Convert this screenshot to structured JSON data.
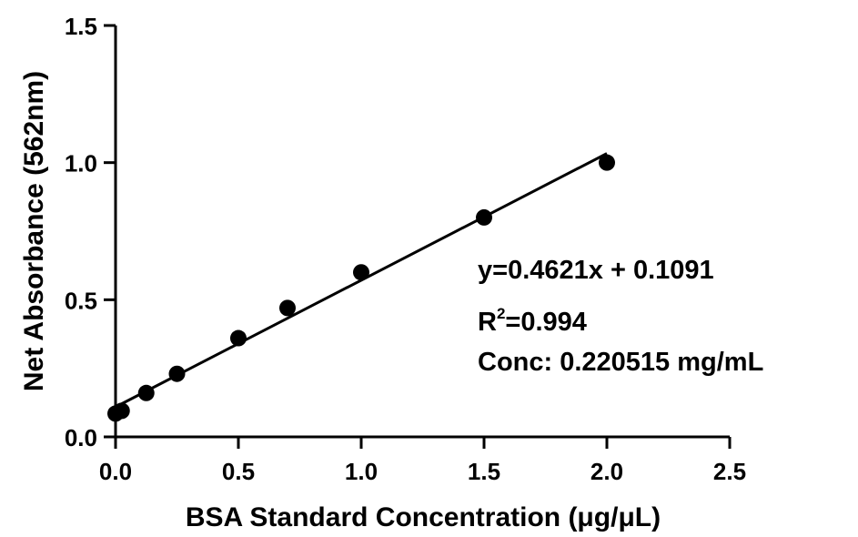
{
  "chart_data": {
    "type": "scatter",
    "xlabel": "BSA Standard Concentration (μg/μL)",
    "ylabel": "Net Absorbance (562nm)",
    "xlim": [
      0,
      2.5
    ],
    "ylim": [
      0,
      1.5
    ],
    "xticks": [
      "0.0",
      "0.5",
      "1.0",
      "1.5",
      "2.0",
      "2.5"
    ],
    "yticks": [
      "0.0",
      "0.5",
      "1.0",
      "1.5"
    ],
    "grid": false,
    "series": [
      {
        "x": [
          0,
          0.025,
          0.125,
          0.25,
          0.5,
          0.7,
          1.0,
          1.5,
          2.0
        ],
        "y": [
          0.085,
          0.095,
          0.16,
          0.23,
          0.36,
          0.47,
          0.6,
          0.8,
          1.0
        ]
      }
    ],
    "fit_line": {
      "slope": 0.4621,
      "intercept": 0.1091,
      "x_range": [
        0,
        2.0
      ]
    },
    "annotations": {
      "equation": "y=0.4621x + 0.1091",
      "r2_prefix": "R",
      "r2_sup": "2",
      "r2_value": "=0.994",
      "conc": "Conc: 0.220515  mg/mL"
    }
  }
}
